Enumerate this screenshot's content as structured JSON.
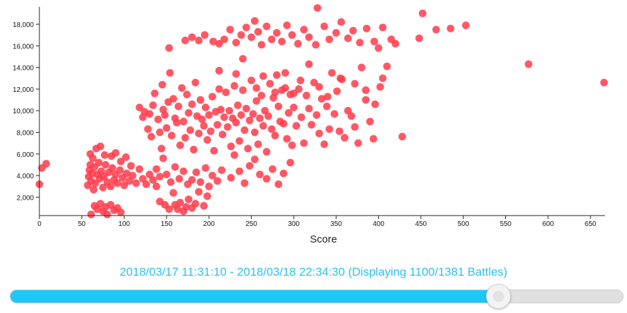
{
  "chart_data": {
    "type": "scatter",
    "xlabel": "Score",
    "ylabel": "",
    "xlim": [
      0,
      667
    ],
    "ylim": [
      300,
      19600
    ],
    "x_ticks": [
      0,
      50,
      100,
      150,
      200,
      250,
      300,
      350,
      400,
      450,
      500,
      550,
      600,
      650
    ],
    "y_ticks": [
      2000,
      4000,
      6000,
      8000,
      10000,
      12000,
      14000,
      16000,
      18000
    ],
    "y_tick_labels": [
      "2,000",
      "4,000",
      "6,000",
      "8,000",
      "10,000",
      "12,000",
      "14,000",
      "16,000",
      "18,000"
    ],
    "point_color": "#ff3b4a",
    "points": [
      [
        0,
        3200
      ],
      [
        3,
        4700
      ],
      [
        8,
        5100
      ],
      [
        57,
        3100
      ],
      [
        58,
        3900
      ],
      [
        59,
        4500
      ],
      [
        60,
        5000
      ],
      [
        61,
        3500
      ],
      [
        62,
        4200
      ],
      [
        64,
        2700
      ],
      [
        65,
        4800
      ],
      [
        66,
        3300
      ],
      [
        68,
        4100
      ],
      [
        70,
        5200
      ],
      [
        71,
        3700
      ],
      [
        73,
        4400
      ],
      [
        75,
        2900
      ],
      [
        76,
        3900
      ],
      [
        78,
        5000
      ],
      [
        80,
        3400
      ],
      [
        82,
        4300
      ],
      [
        84,
        3000
      ],
      [
        86,
        4700
      ],
      [
        88,
        3600
      ],
      [
        90,
        4100
      ],
      [
        92,
        3300
      ],
      [
        95,
        4500
      ],
      [
        98,
        3800
      ],
      [
        100,
        3100
      ],
      [
        103,
        4200
      ],
      [
        106,
        3500
      ],
      [
        110,
        4000
      ],
      [
        114,
        3300
      ],
      [
        118,
        4600
      ],
      [
        122,
        3700
      ],
      [
        126,
        3200
      ],
      [
        130,
        4100
      ],
      [
        134,
        3600
      ],
      [
        138,
        3000
      ],
      [
        142,
        3900
      ],
      [
        60,
        6000
      ],
      [
        63,
        5600
      ],
      [
        67,
        6500
      ],
      [
        72,
        6700
      ],
      [
        77,
        5900
      ],
      [
        85,
        5800
      ],
      [
        90,
        6100
      ],
      [
        96,
        5300
      ],
      [
        102,
        5700
      ],
      [
        108,
        4900
      ],
      [
        61,
        400
      ],
      [
        65,
        1200
      ],
      [
        68,
        900
      ],
      [
        72,
        1400
      ],
      [
        75,
        700
      ],
      [
        78,
        1100
      ],
      [
        80,
        400
      ],
      [
        84,
        1300
      ],
      [
        88,
        800
      ],
      [
        92,
        1000
      ],
      [
        96,
        600
      ],
      [
        160,
        1300
      ],
      [
        163,
        900
      ],
      [
        166,
        1500
      ],
      [
        170,
        700
      ],
      [
        173,
        1100
      ],
      [
        176,
        1800
      ],
      [
        180,
        1000
      ],
      [
        184,
        1400
      ],
      [
        188,
        2500
      ],
      [
        142,
        1600
      ],
      [
        148,
        1300
      ],
      [
        153,
        900
      ],
      [
        194,
        1200
      ],
      [
        198,
        2100
      ],
      [
        158,
        2400
      ],
      [
        118,
        10300
      ],
      [
        122,
        9400
      ],
      [
        124,
        9900
      ],
      [
        128,
        8300
      ],
      [
        130,
        9700
      ],
      [
        132,
        7600
      ],
      [
        134,
        10500
      ],
      [
        136,
        11600
      ],
      [
        140,
        9200
      ],
      [
        142,
        8000
      ],
      [
        144,
        6500
      ],
      [
        145,
        12400
      ],
      [
        146,
        10100
      ],
      [
        148,
        9600
      ],
      [
        150,
        8400
      ],
      [
        152,
        10800
      ],
      [
        154,
        13500
      ],
      [
        156,
        7700
      ],
      [
        158,
        11100
      ],
      [
        160,
        9300
      ],
      [
        162,
        8900
      ],
      [
        164,
        10400
      ],
      [
        166,
        6800
      ],
      [
        168,
        12100
      ],
      [
        170,
        9000
      ],
      [
        172,
        7500
      ],
      [
        174,
        11500
      ],
      [
        176,
        9800
      ],
      [
        178,
        8200
      ],
      [
        180,
        10600
      ],
      [
        182,
        6400
      ],
      [
        184,
        12600
      ],
      [
        186,
        9500
      ],
      [
        188,
        7900
      ],
      [
        190,
        11000
      ],
      [
        192,
        9200
      ],
      [
        194,
        8600
      ],
      [
        196,
        10300
      ],
      [
        198,
        7300
      ],
      [
        200,
        9600
      ],
      [
        202,
        8100
      ],
      [
        204,
        11300
      ],
      [
        206,
        6300
      ],
      [
        208,
        9900
      ],
      [
        210,
        8700
      ],
      [
        212,
        12000
      ],
      [
        214,
        10100
      ],
      [
        216,
        7800
      ],
      [
        218,
        9400
      ],
      [
        220,
        11700
      ],
      [
        222,
        8500
      ],
      [
        224,
        10000
      ],
      [
        226,
        6700
      ],
      [
        228,
        9300
      ],
      [
        230,
        12300
      ],
      [
        232,
        8900
      ],
      [
        234,
        10500
      ],
      [
        236,
        7200
      ],
      [
        238,
        9600
      ],
      [
        240,
        11900
      ],
      [
        242,
        8200
      ],
      [
        244,
        10200
      ],
      [
        246,
        6500
      ],
      [
        248,
        9100
      ],
      [
        250,
        12800
      ],
      [
        252,
        9700
      ],
      [
        254,
        8000
      ],
      [
        256,
        10900
      ],
      [
        258,
        6900
      ],
      [
        260,
        9300
      ],
      [
        262,
        11400
      ],
      [
        264,
        8600
      ],
      [
        266,
        10000
      ],
      [
        268,
        6200
      ],
      [
        270,
        9500
      ],
      [
        272,
        12500
      ],
      [
        274,
        8300
      ],
      [
        276,
        11200
      ],
      [
        278,
        7700
      ],
      [
        280,
        13300
      ],
      [
        282,
        10400
      ],
      [
        284,
        9000
      ],
      [
        286,
        11900
      ],
      [
        288,
        8800
      ],
      [
        290,
        12100
      ],
      [
        292,
        7400
      ],
      [
        294,
        9800
      ],
      [
        296,
        11500
      ],
      [
        298,
        6800
      ],
      [
        300,
        10300
      ],
      [
        303,
        8600
      ],
      [
        306,
        12000
      ],
      [
        309,
        9400
      ],
      [
        312,
        7000
      ],
      [
        315,
        11400
      ],
      [
        318,
        10200
      ],
      [
        321,
        8700
      ],
      [
        324,
        12600
      ],
      [
        327,
        9600
      ],
      [
        330,
        7900
      ],
      [
        333,
        11100
      ],
      [
        336,
        6900
      ],
      [
        339,
        10400
      ],
      [
        342,
        8300
      ],
      [
        345,
        13500
      ],
      [
        348,
        9700
      ],
      [
        351,
        11800
      ],
      [
        354,
        8100
      ],
      [
        357,
        12900
      ],
      [
        360,
        7500
      ],
      [
        364,
        10000
      ],
      [
        368,
        9500
      ],
      [
        372,
        8500
      ],
      [
        376,
        7000
      ],
      [
        380,
        14000
      ],
      [
        385,
        11000
      ],
      [
        390,
        9000
      ],
      [
        394,
        7400
      ],
      [
        400,
        15800
      ],
      [
        405,
        13000
      ],
      [
        410,
        14100
      ],
      [
        415,
        16600
      ],
      [
        420,
        16200
      ],
      [
        428,
        7600
      ],
      [
        448,
        16700
      ],
      [
        452,
        19000
      ],
      [
        468,
        17500
      ],
      [
        485,
        17600
      ],
      [
        503,
        17900
      ],
      [
        577,
        14300
      ],
      [
        666,
        12600
      ],
      [
        153,
        15800
      ],
      [
        172,
        16500
      ],
      [
        180,
        16800
      ],
      [
        188,
        16500
      ],
      [
        195,
        17000
      ],
      [
        205,
        16400
      ],
      [
        212,
        16200
      ],
      [
        218,
        16600
      ],
      [
        225,
        17500
      ],
      [
        232,
        16300
      ],
      [
        238,
        17000
      ],
      [
        244,
        17700
      ],
      [
        250,
        16800
      ],
      [
        254,
        18300
      ],
      [
        258,
        17300
      ],
      [
        262,
        16100
      ],
      [
        268,
        17800
      ],
      [
        274,
        16600
      ],
      [
        280,
        17200
      ],
      [
        286,
        16400
      ],
      [
        292,
        17900
      ],
      [
        298,
        17000
      ],
      [
        305,
        16200
      ],
      [
        312,
        17500
      ],
      [
        318,
        16800
      ],
      [
        326,
        16100
      ],
      [
        328,
        19500
      ],
      [
        336,
        17800
      ],
      [
        342,
        16600
      ],
      [
        350,
        17200
      ],
      [
        356,
        18200
      ],
      [
        364,
        16700
      ],
      [
        370,
        17400
      ],
      [
        378,
        16300
      ],
      [
        386,
        17600
      ],
      [
        395,
        16400
      ],
      [
        405,
        17700
      ],
      [
        212,
        13700
      ],
      [
        232,
        13400
      ],
      [
        240,
        14800
      ],
      [
        256,
        12100
      ],
      [
        264,
        13200
      ],
      [
        278,
        11700
      ],
      [
        290,
        13500
      ],
      [
        300,
        11600
      ],
      [
        308,
        12800
      ],
      [
        318,
        14300
      ],
      [
        330,
        12200
      ],
      [
        340,
        11300
      ],
      [
        355,
        13000
      ],
      [
        372,
        12500
      ],
      [
        385,
        11900
      ],
      [
        396,
        10600
      ],
      [
        402,
        12200
      ],
      [
        210,
        3500
      ],
      [
        215,
        4500
      ],
      [
        226,
        3800
      ],
      [
        230,
        5900
      ],
      [
        236,
        4400
      ],
      [
        242,
        3300
      ],
      [
        248,
        4900
      ],
      [
        254,
        5500
      ],
      [
        260,
        4100
      ],
      [
        268,
        3700
      ],
      [
        275,
        4600
      ],
      [
        282,
        3200
      ],
      [
        288,
        4200
      ],
      [
        296,
        5200
      ],
      [
        180,
        3600
      ],
      [
        185,
        4300
      ],
      [
        190,
        3400
      ],
      [
        196,
        4700
      ],
      [
        200,
        3000
      ],
      [
        204,
        4000
      ],
      [
        150,
        4100
      ],
      [
        155,
        3400
      ],
      [
        160,
        4800
      ],
      [
        165,
        3700
      ],
      [
        170,
        4400
      ],
      [
        175,
        3200
      ],
      [
        146,
        5600
      ],
      [
        138,
        4600
      ]
    ]
  },
  "range_label": "2018/03/17 11:31:10 - 2018/03/18 22:34:30 (Displaying 1100/1381 Battles)",
  "slider": {
    "fraction": 0.7965,
    "fill_color": "#1ec8f6"
  }
}
